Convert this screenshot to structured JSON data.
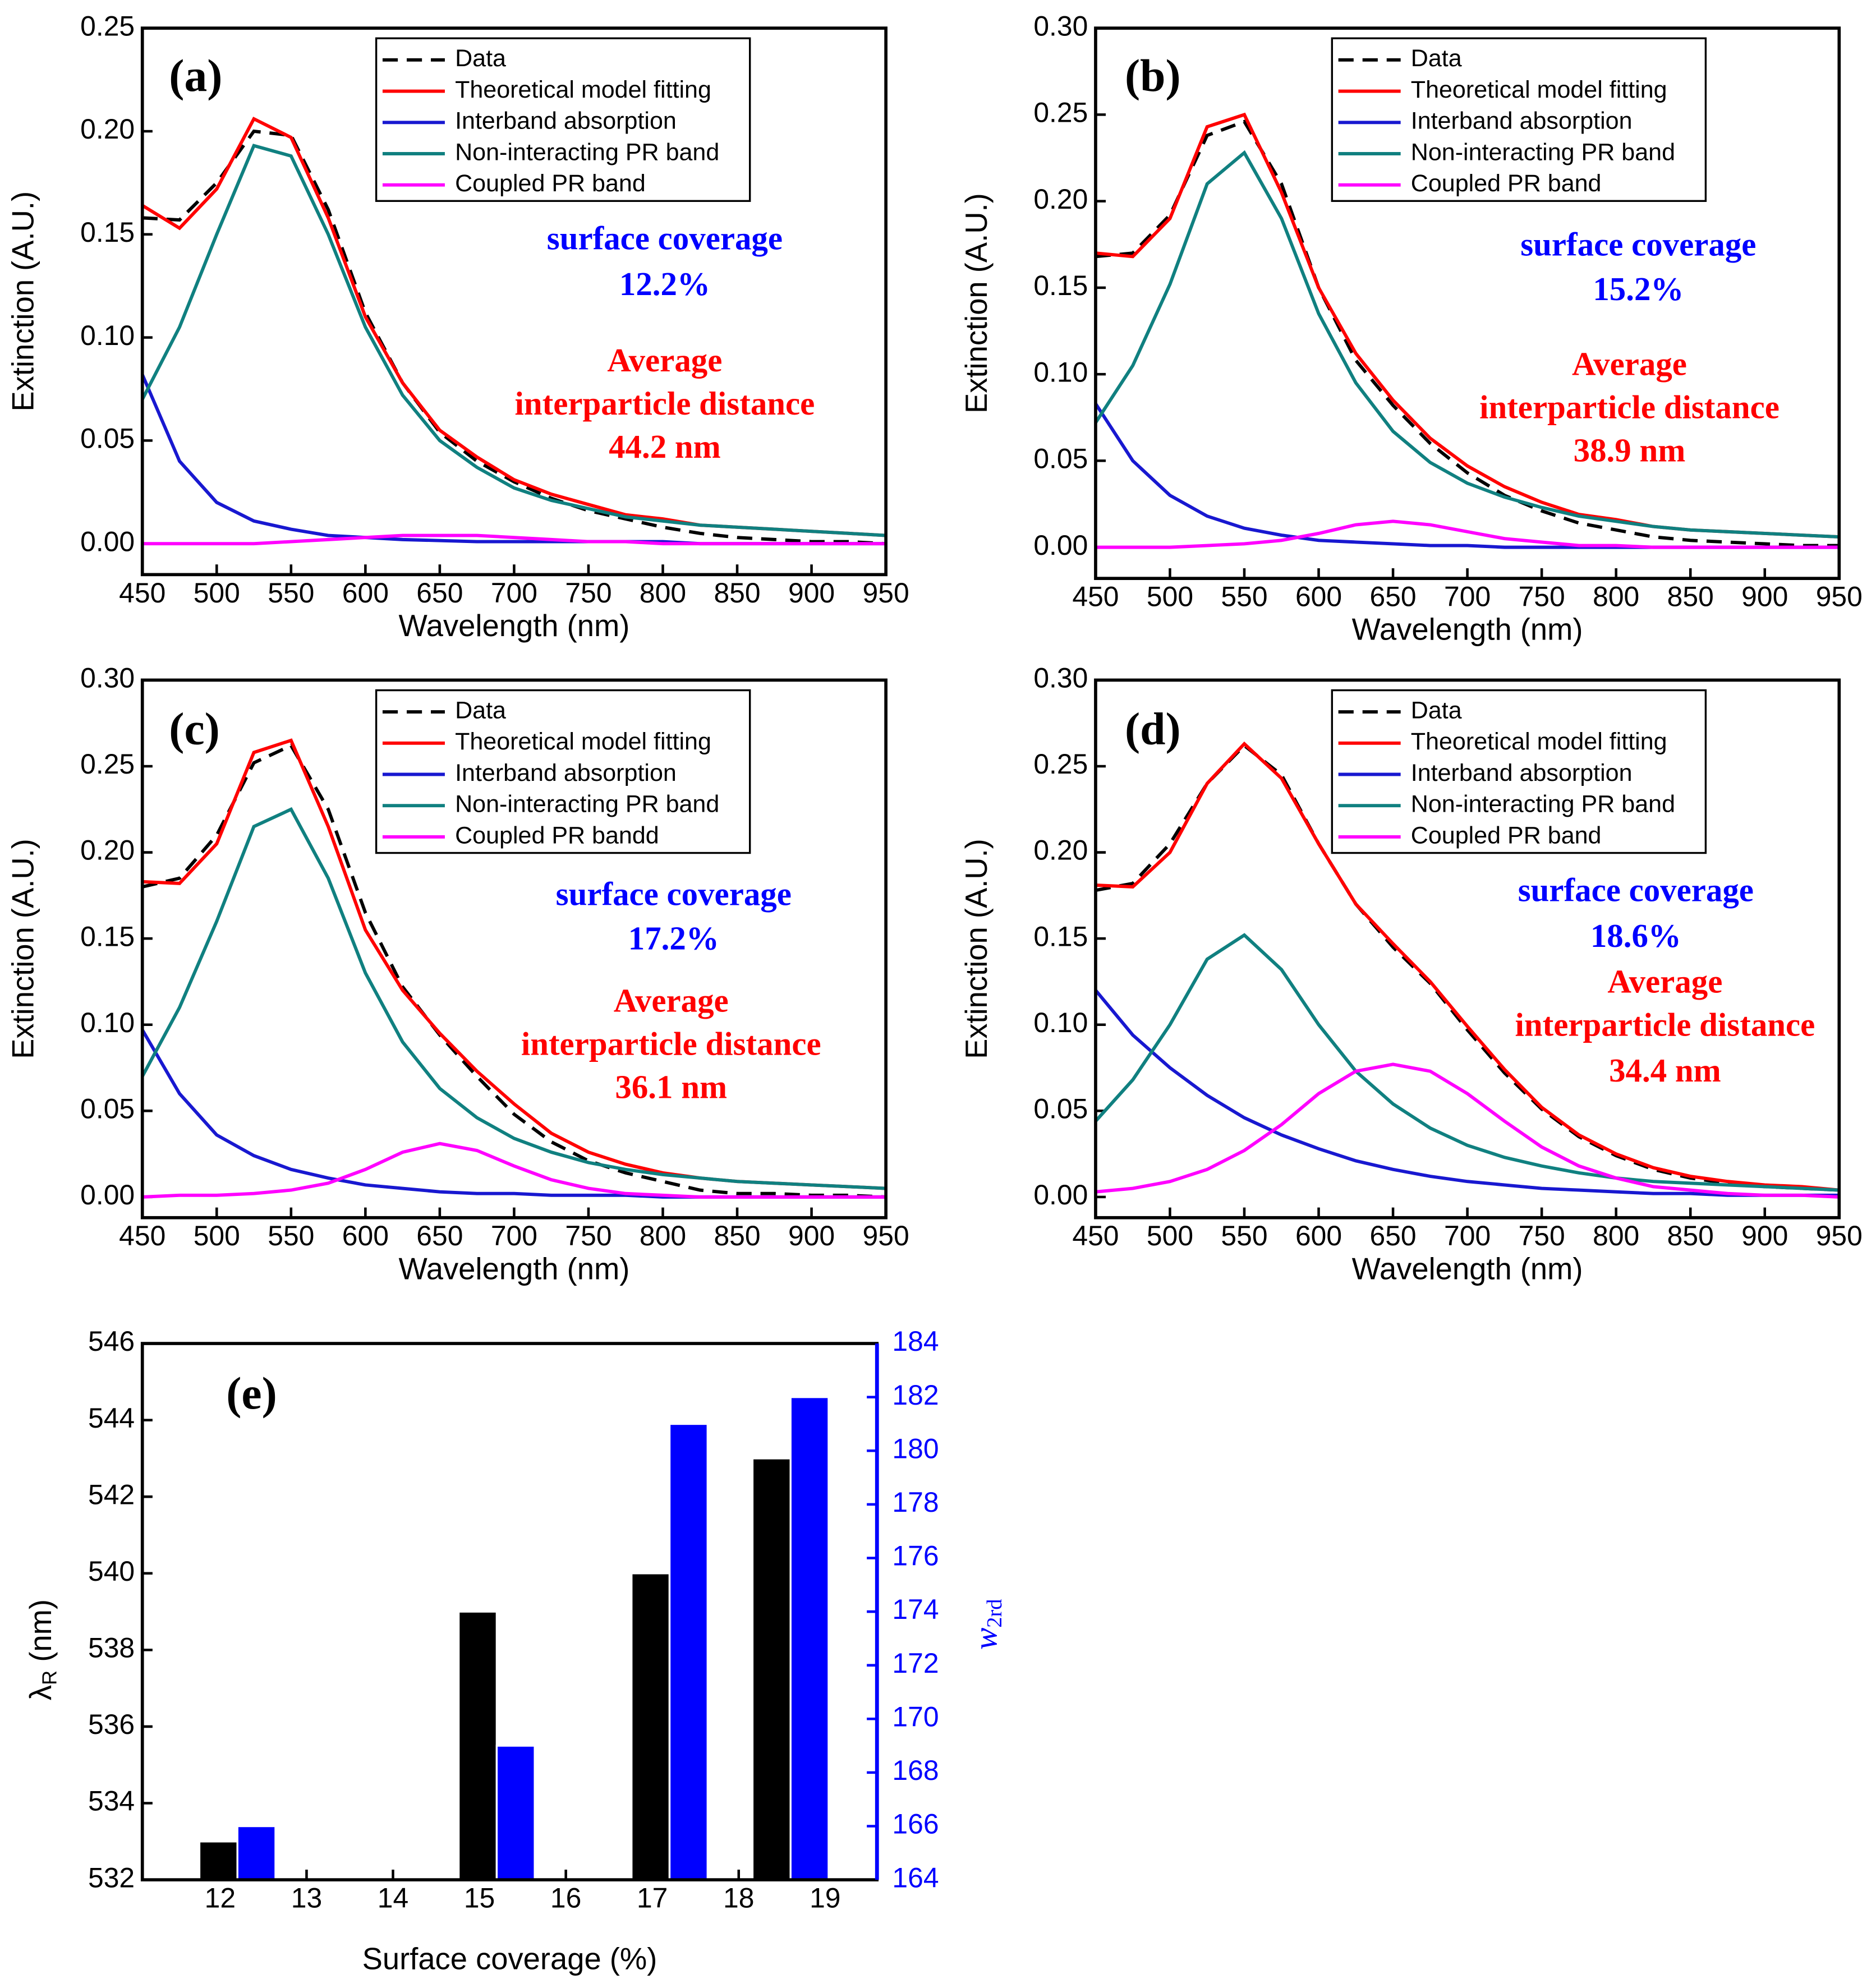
{
  "chart_data": [
    {
      "type": "line",
      "label": "(a)",
      "xlabel": "Wavelength (nm)",
      "ylabel": "Extinction (A.U.)",
      "x": [
        450,
        475,
        500,
        525,
        550,
        575,
        600,
        625,
        650,
        675,
        700,
        725,
        750,
        775,
        800,
        825,
        850,
        875,
        900,
        925,
        950
      ],
      "xlim": [
        450,
        950
      ],
      "xticks": [
        450,
        500,
        550,
        600,
        650,
        700,
        750,
        800,
        850,
        900,
        950
      ],
      "ylim": [
        -0.015,
        0.25
      ],
      "yticks": [
        {
          "value": 0,
          "label": "0.00"
        },
        0.05,
        {
          "value": 0.1,
          "label": "0.10"
        },
        0.15,
        {
          "value": 0.2,
          "label": "0.20"
        },
        0.25
      ],
      "series": [
        {
          "name": "Data",
          "color": "#000000",
          "linestyle": "dashed",
          "values": [
            0.158,
            0.157,
            0.175,
            0.2,
            0.198,
            0.162,
            0.112,
            0.078,
            0.054,
            0.04,
            0.03,
            0.022,
            0.016,
            0.012,
            0.008,
            0.005,
            0.003,
            0.002,
            0.001,
            0.001,
            0
          ]
        },
        {
          "name": "Theoretical model fitting",
          "color": "#ff0000",
          "values": [
            0.164,
            0.153,
            0.172,
            0.206,
            0.197,
            0.158,
            0.11,
            0.078,
            0.055,
            0.042,
            0.031,
            0.024,
            0.019,
            0.014,
            0.012,
            0.009,
            0.008,
            0.007,
            0.006,
            0.005,
            0.004
          ]
        },
        {
          "name": "Interband absorption",
          "color": "#1818d0",
          "values": [
            0.082,
            0.04,
            0.02,
            0.011,
            0.007,
            0.004,
            0.003,
            0.002,
            0.0015,
            0.001,
            0.001,
            0.001,
            0.001,
            0.001,
            0.001,
            0,
            0,
            0,
            0,
            0,
            0
          ]
        },
        {
          "name": "Non-interacting PR band",
          "color": "#108080",
          "values": [
            0.07,
            0.105,
            0.15,
            0.193,
            0.188,
            0.15,
            0.105,
            0.072,
            0.05,
            0.037,
            0.027,
            0.021,
            0.017,
            0.013,
            0.011,
            0.009,
            0.008,
            0.007,
            0.006,
            0.005,
            0.004
          ]
        },
        {
          "name": "Coupled PR band",
          "color": "#ff00ff",
          "values": [
            0,
            0,
            0,
            0,
            0.001,
            0.002,
            0.003,
            0.004,
            0.004,
            0.004,
            0.003,
            0.002,
            0.001,
            0.001,
            0,
            0,
            0,
            0,
            0,
            0,
            0
          ]
        }
      ],
      "annotations": [
        {
          "text": "surface coverage",
          "color": "#0000ff"
        },
        {
          "text": "12.2%",
          "color": "#0000ff"
        },
        {
          "text": "Average",
          "color": "#ff0000"
        },
        {
          "text": "interparticle distance",
          "color": "#ff0000"
        },
        {
          "text": "44.2 nm",
          "color": "#ff0000"
        }
      ]
    },
    {
      "type": "line",
      "label": "(b)",
      "xlabel": "Wavelength (nm)",
      "ylabel": "Extinction (A.U.)",
      "x": [
        450,
        475,
        500,
        525,
        550,
        575,
        600,
        625,
        650,
        675,
        700,
        725,
        750,
        775,
        800,
        825,
        850,
        875,
        900,
        925,
        950
      ],
      "xlim": [
        450,
        950
      ],
      "xticks": [
        450,
        500,
        550,
        600,
        650,
        700,
        750,
        800,
        850,
        900,
        950
      ],
      "ylim": [
        -0.018,
        0.3
      ],
      "yticks": [
        {
          "value": 0,
          "label": "0.00"
        },
        0.05,
        {
          "value": 0.1,
          "label": "0.10"
        },
        0.15,
        {
          "value": 0.2,
          "label": "0.20"
        },
        0.25,
        {
          "value": 0.3,
          "label": "0.30"
        }
      ],
      "series": [
        {
          "name": "Data",
          "color": "#000000",
          "linestyle": "dashed",
          "values": [
            0.168,
            0.17,
            0.192,
            0.238,
            0.246,
            0.21,
            0.15,
            0.108,
            0.082,
            0.06,
            0.043,
            0.03,
            0.021,
            0.014,
            0.01,
            0.006,
            0.004,
            0.003,
            0.002,
            0.001,
            0.001
          ]
        },
        {
          "name": "Theoretical model fitting",
          "color": "#ff0000",
          "values": [
            0.17,
            0.168,
            0.19,
            0.243,
            0.25,
            0.205,
            0.15,
            0.112,
            0.085,
            0.063,
            0.047,
            0.035,
            0.026,
            0.019,
            0.016,
            0.012,
            0.01,
            0.009,
            0.008,
            0.007,
            0.006
          ]
        },
        {
          "name": "Interband absorption",
          "color": "#1818d0",
          "values": [
            0.083,
            0.05,
            0.03,
            0.018,
            0.011,
            0.007,
            0.004,
            0.003,
            0.002,
            0.001,
            0.001,
            0,
            0,
            0,
            0,
            0,
            0,
            0,
            0,
            0,
            0
          ]
        },
        {
          "name": "Non-interacting PR band",
          "color": "#108080",
          "values": [
            0.072,
            0.105,
            0.152,
            0.21,
            0.228,
            0.19,
            0.135,
            0.095,
            0.067,
            0.049,
            0.037,
            0.029,
            0.023,
            0.018,
            0.015,
            0.012,
            0.01,
            0.009,
            0.008,
            0.007,
            0.006
          ]
        },
        {
          "name": "Coupled PR band",
          "color": "#ff00ff",
          "values": [
            0,
            0,
            0,
            0.001,
            0.002,
            0.004,
            0.008,
            0.013,
            0.015,
            0.013,
            0.009,
            0.005,
            0.003,
            0.001,
            0.001,
            0,
            0,
            0,
            0,
            0,
            0
          ]
        }
      ],
      "annotations": [
        {
          "text": "surface coverage",
          "color": "#0000ff"
        },
        {
          "text": "15.2%",
          "color": "#0000ff"
        },
        {
          "text": "Average",
          "color": "#ff0000"
        },
        {
          "text": "interparticle distance",
          "color": "#ff0000"
        },
        {
          "text": "38.9 nm",
          "color": "#ff0000"
        }
      ]
    },
    {
      "type": "line",
      "label": "(c)",
      "xlabel": "Wavelength (nm)",
      "ylabel": "Extinction (A.U.)",
      "x": [
        450,
        475,
        500,
        525,
        550,
        575,
        600,
        625,
        650,
        675,
        700,
        725,
        750,
        775,
        800,
        825,
        850,
        875,
        900,
        925,
        950
      ],
      "xlim": [
        450,
        950
      ],
      "xticks": [
        450,
        500,
        550,
        600,
        650,
        700,
        750,
        800,
        850,
        900,
        950
      ],
      "ylim": [
        -0.012,
        0.3
      ],
      "yticks": [
        {
          "value": 0,
          "label": "0.00"
        },
        0.05,
        {
          "value": 0.1,
          "label": "0.10"
        },
        0.15,
        {
          "value": 0.2,
          "label": "0.20"
        },
        0.25,
        {
          "value": 0.3,
          "label": "0.30"
        }
      ],
      "series": [
        {
          "name": "Data",
          "color": "#000000",
          "linestyle": "dashed",
          "values": [
            0.18,
            0.185,
            0.21,
            0.252,
            0.262,
            0.225,
            0.165,
            0.122,
            0.094,
            0.07,
            0.048,
            0.032,
            0.021,
            0.014,
            0.009,
            0.004,
            0.002,
            0.002,
            0.001,
            0.001,
            0
          ]
        },
        {
          "name": "Theoretical model fitting",
          "color": "#ff0000",
          "values": [
            0.183,
            0.182,
            0.205,
            0.258,
            0.265,
            0.215,
            0.155,
            0.12,
            0.095,
            0.073,
            0.054,
            0.037,
            0.026,
            0.019,
            0.014,
            0.011,
            0.009,
            0.008,
            0.007,
            0.006,
            0.005
          ]
        },
        {
          "name": "Interband absorption",
          "color": "#1818d0",
          "values": [
            0.097,
            0.06,
            0.036,
            0.024,
            0.016,
            0.011,
            0.007,
            0.005,
            0.003,
            0.002,
            0.002,
            0.001,
            0.001,
            0.001,
            0,
            0,
            0,
            0,
            0,
            0,
            0
          ]
        },
        {
          "name": "Non-interacting PR band",
          "color": "#108080",
          "values": [
            0.07,
            0.11,
            0.16,
            0.215,
            0.225,
            0.185,
            0.13,
            0.09,
            0.063,
            0.046,
            0.034,
            0.026,
            0.02,
            0.016,
            0.013,
            0.011,
            0.009,
            0.008,
            0.007,
            0.006,
            0.005
          ]
        },
        {
          "name": "Coupled PR bandd",
          "color": "#ff00ff",
          "values": [
            0,
            0.001,
            0.001,
            0.002,
            0.004,
            0.008,
            0.016,
            0.026,
            0.031,
            0.027,
            0.018,
            0.01,
            0.005,
            0.002,
            0.001,
            0,
            0,
            0,
            0,
            0,
            0
          ]
        }
      ],
      "annotations": [
        {
          "text": "surface coverage",
          "color": "#0000ff"
        },
        {
          "text": "17.2%",
          "color": "#0000ff"
        },
        {
          "text": "Average",
          "color": "#ff0000"
        },
        {
          "text": "interparticle distance",
          "color": "#ff0000"
        },
        {
          "text": "36.1 nm",
          "color": "#ff0000"
        }
      ]
    },
    {
      "type": "line",
      "label": "(d)",
      "xlabel": "Wavelength (nm)",
      "ylabel": "Extinction (A.U.)",
      "x": [
        450,
        475,
        500,
        525,
        550,
        575,
        600,
        625,
        650,
        675,
        700,
        725,
        750,
        775,
        800,
        825,
        850,
        875,
        900,
        925,
        950
      ],
      "xlim": [
        450,
        950
      ],
      "xticks": [
        450,
        500,
        550,
        600,
        650,
        700,
        750,
        800,
        850,
        900,
        950
      ],
      "ylim": [
        -0.012,
        0.3
      ],
      "yticks": [
        {
          "value": 0,
          "label": "0.00"
        },
        0.05,
        {
          "value": 0.1,
          "label": "0.10"
        },
        0.15,
        {
          "value": 0.2,
          "label": "0.20"
        },
        0.25,
        {
          "value": 0.3,
          "label": "0.30"
        }
      ],
      "series": [
        {
          "name": "Data",
          "color": "#000000",
          "linestyle": "dashed",
          "values": [
            0.178,
            0.182,
            0.205,
            0.24,
            0.262,
            0.245,
            0.205,
            0.17,
            0.145,
            0.124,
            0.097,
            0.072,
            0.051,
            0.035,
            0.024,
            0.016,
            0.011,
            0.008,
            0.006,
            0.005,
            0.004
          ]
        },
        {
          "name": "Theoretical model fitting",
          "color": "#ff0000",
          "values": [
            0.181,
            0.18,
            0.2,
            0.24,
            0.263,
            0.243,
            0.205,
            0.17,
            0.147,
            0.125,
            0.099,
            0.074,
            0.052,
            0.036,
            0.025,
            0.017,
            0.012,
            0.009,
            0.007,
            0.006,
            0.004
          ]
        },
        {
          "name": "Interband absorption",
          "color": "#1818d0",
          "values": [
            0.12,
            0.094,
            0.075,
            0.059,
            0.046,
            0.036,
            0.028,
            0.021,
            0.016,
            0.012,
            0.009,
            0.007,
            0.005,
            0.004,
            0.003,
            0.002,
            0.002,
            0.001,
            0.001,
            0.001,
            0.001
          ]
        },
        {
          "name": "Non-interacting PR band",
          "color": "#108080",
          "values": [
            0.044,
            0.068,
            0.1,
            0.138,
            0.152,
            0.132,
            0.1,
            0.073,
            0.054,
            0.04,
            0.03,
            0.023,
            0.018,
            0.014,
            0.011,
            0.009,
            0.008,
            0.007,
            0.006,
            0.005,
            0.004
          ]
        },
        {
          "name": "Coupled PR band",
          "color": "#ff00ff",
          "values": [
            0.003,
            0.005,
            0.009,
            0.016,
            0.027,
            0.042,
            0.06,
            0.073,
            0.077,
            0.073,
            0.06,
            0.044,
            0.029,
            0.018,
            0.011,
            0.006,
            0.004,
            0.002,
            0.001,
            0.001,
            0
          ]
        }
      ],
      "annotations": [
        {
          "text": "surface coverage",
          "color": "#0000ff"
        },
        {
          "text": "18.6%",
          "color": "#0000ff"
        },
        {
          "text": "Average",
          "color": "#ff0000"
        },
        {
          "text": "interparticle distance",
          "color": "#ff0000"
        },
        {
          "text": "34.4 nm",
          "color": "#ff0000"
        }
      ]
    },
    {
      "type": "bar",
      "label": "(e)",
      "xlabel": "Surface coverage (%)",
      "ylabel": {
        "symbol": "λ",
        "subscript": "R",
        "unit": " (nm)"
      },
      "y2label": {
        "symbol": "w",
        "subscript": "2rd"
      },
      "x": [
        12.2,
        15.2,
        17.2,
        18.6
      ],
      "xlim": [
        11.1,
        19.6
      ],
      "xticks": [
        12,
        13,
        14,
        15,
        16,
        17,
        18,
        19
      ],
      "ylim": [
        532,
        546
      ],
      "yticks": [
        532,
        534,
        536,
        538,
        540,
        542,
        544,
        546
      ],
      "y2lim": [
        164,
        184
      ],
      "y2ticks": [
        164,
        166,
        168,
        170,
        172,
        174,
        176,
        178,
        180,
        182,
        184
      ],
      "series": [
        {
          "color": "#000000",
          "values": [
            533,
            539,
            540,
            543
          ]
        },
        {
          "color": "#0000ff",
          "axis": "y2",
          "values": [
            166,
            169,
            181,
            182
          ]
        }
      ]
    }
  ]
}
